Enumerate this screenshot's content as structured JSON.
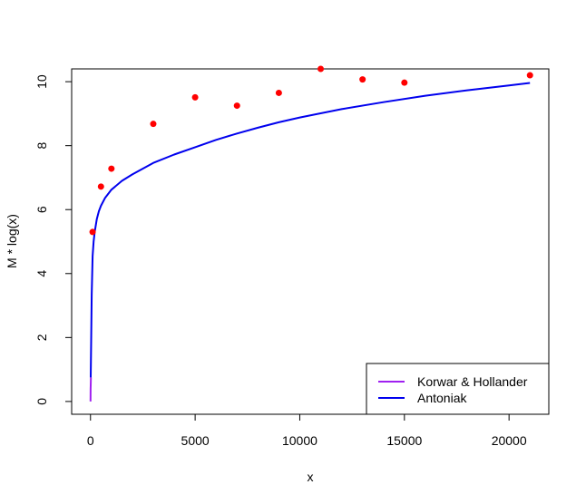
{
  "chart_data": {
    "type": "line",
    "title": "",
    "xlabel": "x",
    "ylabel": "M * log(x)",
    "xlim": [
      -900,
      21900
    ],
    "ylim": [
      -0.4,
      10.4
    ],
    "x_ticks": [
      0,
      5000,
      10000,
      15000,
      20000
    ],
    "x_tick_labels": [
      "0",
      "5000",
      "10000",
      "15000",
      "20000"
    ],
    "y_ticks": [
      0,
      2,
      4,
      6,
      8,
      10
    ],
    "y_tick_labels": [
      "0",
      "2",
      "4",
      "6",
      "8",
      "10"
    ],
    "grid": false,
    "legend_position": "bottom-right",
    "points": {
      "color": "#ff0000",
      "x": [
        100,
        500,
        1000,
        3000,
        5000,
        7000,
        9000,
        11000,
        13000,
        15000,
        21000
      ],
      "y": [
        5.3,
        6.72,
        7.28,
        8.68,
        9.51,
        9.25,
        9.65,
        10.4,
        10.07,
        9.97,
        10.2
      ]
    },
    "series": [
      {
        "name": "Korwar & Hollander",
        "color": "#a020f0",
        "x": [
          1,
          5,
          10,
          20
        ],
        "y": [
          0.0,
          0.4,
          0.5,
          0.75
        ]
      },
      {
        "name": "Antoniak",
        "color": "#0000ee",
        "x": [
          10,
          30,
          60,
          100,
          150,
          200,
          300,
          400,
          500,
          700,
          1000,
          1500,
          2000,
          3000,
          4000,
          5000,
          6000,
          7000,
          8000,
          9000,
          10000,
          12000,
          14000,
          16000,
          18000,
          20000,
          21000
        ],
        "y": [
          0.75,
          1.9,
          3.35,
          4.55,
          5.0,
          5.3,
          5.7,
          5.95,
          6.12,
          6.37,
          6.62,
          6.9,
          7.1,
          7.46,
          7.72,
          7.95,
          8.18,
          8.38,
          8.56,
          8.73,
          8.88,
          9.14,
          9.36,
          9.56,
          9.73,
          9.88,
          9.96
        ]
      }
    ]
  }
}
